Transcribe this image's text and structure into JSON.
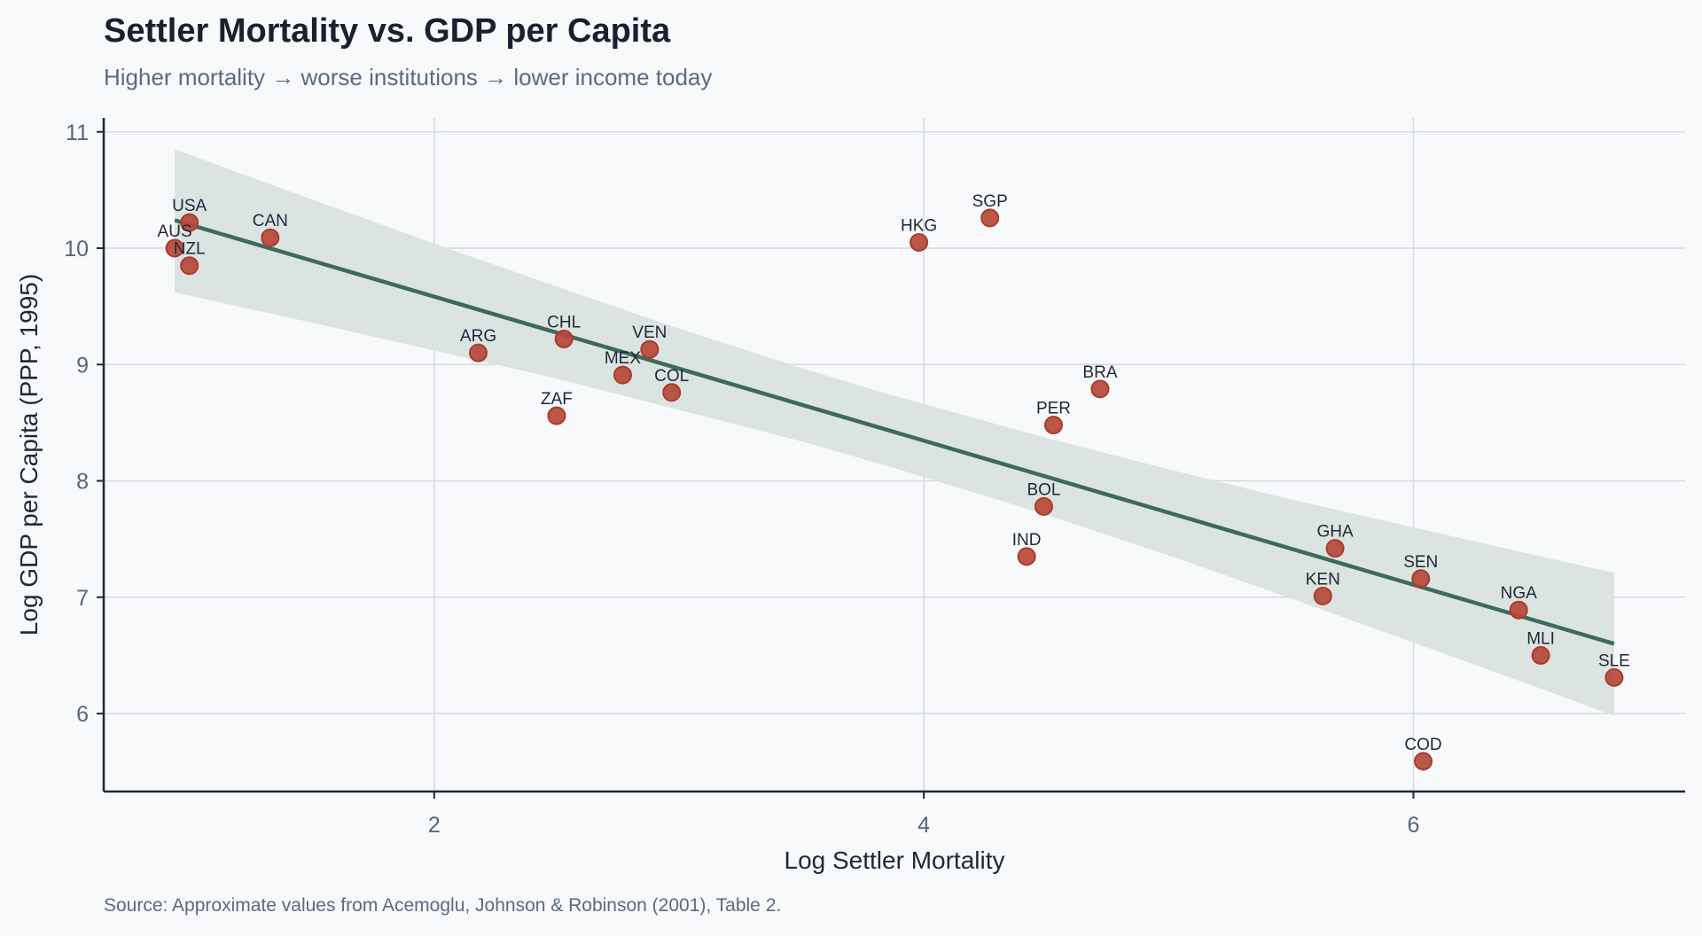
{
  "title": "Settler Mortality vs. GDP per Capita",
  "subtitle": "Higher mortality → worse institutions → lower income today",
  "source": "Source: Approximate values from Acemoglu, Johnson & Robinson (2001), Table 2.",
  "colors": {
    "background": "#f7f9fb",
    "point_fill": "#b5493a",
    "point_edge": "#ab3b2c",
    "fit_line": "#3d6b5a",
    "ci_band": "#dce4e2",
    "grid": "#d5d9e0",
    "axis": "#1f2737"
  },
  "chart_data": {
    "type": "scatter",
    "title": "Settler Mortality vs. GDP per Capita",
    "subtitle": "Higher mortality → worse institutions → lower income today",
    "xlabel": "Log Settler Mortality",
    "ylabel": "Log GDP per Capita (PPP, 1995)",
    "xlim": [
      0.65,
      7.11
    ],
    "ylim": [
      5.33,
      11.12
    ],
    "xticks": [
      2,
      4,
      6
    ],
    "yticks": [
      6,
      7,
      8,
      9,
      10,
      11
    ],
    "grid": true,
    "legend": "none",
    "points": [
      {
        "label": "AUS",
        "x": 0.94,
        "y": 10.0
      },
      {
        "label": "USA",
        "x": 1.0,
        "y": 10.22
      },
      {
        "label": "NZL",
        "x": 1.0,
        "y": 9.85
      },
      {
        "label": "CAN",
        "x": 1.33,
        "y": 10.09
      },
      {
        "label": "ARG",
        "x": 2.18,
        "y": 9.1
      },
      {
        "label": "ZAF",
        "x": 2.5,
        "y": 8.56
      },
      {
        "label": "CHL",
        "x": 2.53,
        "y": 9.22
      },
      {
        "label": "MEX",
        "x": 2.77,
        "y": 8.91
      },
      {
        "label": "VEN",
        "x": 2.88,
        "y": 9.13
      },
      {
        "label": "COL",
        "x": 2.97,
        "y": 8.76
      },
      {
        "label": "HKG",
        "x": 3.98,
        "y": 10.05
      },
      {
        "label": "SGP",
        "x": 4.27,
        "y": 10.26
      },
      {
        "label": "IND",
        "x": 4.42,
        "y": 7.35
      },
      {
        "label": "BOL",
        "x": 4.49,
        "y": 7.78
      },
      {
        "label": "PER",
        "x": 4.53,
        "y": 8.48
      },
      {
        "label": "BRA",
        "x": 4.72,
        "y": 8.79
      },
      {
        "label": "KEN",
        "x": 5.63,
        "y": 7.01
      },
      {
        "label": "GHA",
        "x": 5.68,
        "y": 7.42
      },
      {
        "label": "SEN",
        "x": 6.03,
        "y": 7.16
      },
      {
        "label": "COD",
        "x": 6.04,
        "y": 5.59
      },
      {
        "label": "NGA",
        "x": 6.43,
        "y": 6.89
      },
      {
        "label": "MLI",
        "x": 6.52,
        "y": 6.5
      },
      {
        "label": "SLE",
        "x": 6.82,
        "y": 6.31
      }
    ],
    "fit_line": {
      "x": [
        0.94,
        6.82
      ],
      "y": [
        10.24,
        6.6
      ],
      "slope": -0.619,
      "intercept": 10.82
    },
    "confidence_band": {
      "x": [
        0.94,
        1.5,
        2.0,
        2.5,
        3.0,
        3.5,
        3.88,
        4.5,
        5.0,
        5.5,
        6.0,
        6.5,
        6.82
      ],
      "lower": [
        9.62,
        9.36,
        9.12,
        8.88,
        8.61,
        8.34,
        8.11,
        7.71,
        7.36,
        6.99,
        6.61,
        6.23,
        5.98
      ],
      "upper": [
        10.85,
        10.42,
        10.04,
        9.67,
        9.31,
        8.97,
        8.73,
        8.37,
        8.1,
        7.84,
        7.6,
        7.36,
        7.21
      ]
    }
  }
}
